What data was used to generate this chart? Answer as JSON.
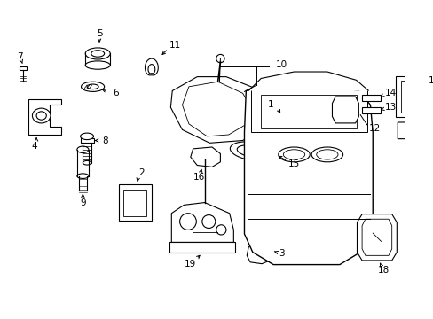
{
  "background_color": "#ffffff",
  "fig_width": 4.89,
  "fig_height": 3.6,
  "dpi": 100
}
